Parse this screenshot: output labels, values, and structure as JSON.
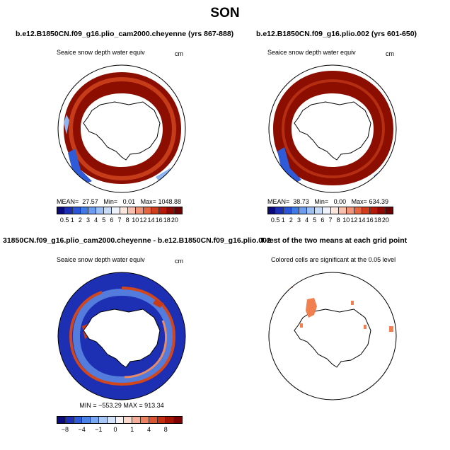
{
  "figure": {
    "title": "SON"
  },
  "panels": [
    {
      "title": "b.e12.B1850CN.f09_g16.plio_cam2000.cheyenne (yrs 867-888)",
      "variable": "Seaice snow depth water equiv",
      "units": "cm",
      "stats": {
        "mean_label": "MEAN=",
        "mean": "27.57",
        "min_label": "Min=",
        "min": "0.01",
        "max_label": "Max=",
        "max": "1048.88"
      }
    },
    {
      "title": "b.e12.B1850CN.f09_g16.plio.002 (yrs 601-650)",
      "variable": "Seaice snow depth water equiv",
      "units": "cm",
      "stats": {
        "mean_label": "MEAN=",
        "mean": "38.73",
        "min_label": "Min=",
        "min": "0.00",
        "max_label": "Max=",
        "max": "634.39"
      }
    },
    {
      "title": "31850CN.f09_g16.plio_cam2000.cheyenne - b.e12.B1850CN.f09_g16.plio.002",
      "variable": "Seaice snow depth water equiv",
      "units": "cm",
      "stats_line": "MIN = −553.29 MAX = 913.34"
    },
    {
      "title": "T-test of the two means at each grid point",
      "subtitle": "Colored cells are significant at the 0.05 level"
    }
  ],
  "colorbar_abs": {
    "labels": [
      "0.5",
      "1",
      "2",
      "3",
      "4",
      "5",
      "6",
      "7",
      "8",
      "10",
      "12",
      "14",
      "16",
      "18",
      "20"
    ],
    "colors": [
      "#0a0a7a",
      "#1b2fb5",
      "#2a55d6",
      "#3f79e6",
      "#6b9cf0",
      "#9bbef5",
      "#c6dbf8",
      "#eef3fb",
      "#fde6dc",
      "#f9c1ad",
      "#f29478",
      "#e4663f",
      "#cf3d1c",
      "#b31b08",
      "#8c0a00",
      "#6b0000"
    ]
  },
  "colorbar_diff": {
    "labels": [
      "−8",
      "−4",
      "−1",
      "0",
      "1",
      "4",
      "8"
    ],
    "colors": [
      "#0a0a7a",
      "#1d30b8",
      "#2f5ad8",
      "#4b82e8",
      "#7aa7f1",
      "#a8c7f6",
      "#d2e3fa",
      "#f7f3f3",
      "#fbd8cb",
      "#f5ae95",
      "#ec8260",
      "#dc5532",
      "#c4300f",
      "#a41402",
      "#7e0000"
    ]
  }
}
